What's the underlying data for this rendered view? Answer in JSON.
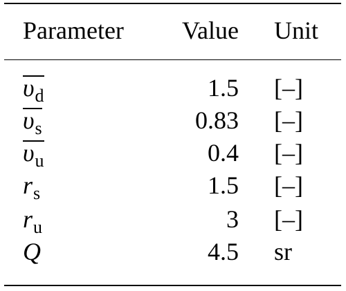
{
  "table": {
    "headers": {
      "parameter": "Parameter",
      "value": "Value",
      "unit": "Unit"
    },
    "rows": [
      {
        "symbol": "υ",
        "subscript": "d",
        "overline": true,
        "value": "1.5",
        "unit": "[–]"
      },
      {
        "symbol": "υ",
        "subscript": "s",
        "overline": true,
        "value": "0.83",
        "unit": "[–]"
      },
      {
        "symbol": "υ",
        "subscript": "u",
        "overline": true,
        "value": "0.4",
        "unit": "[–]"
      },
      {
        "symbol": "r",
        "subscript": "s",
        "overline": false,
        "value": "1.5",
        "unit": "[–]"
      },
      {
        "symbol": "r",
        "subscript": "u",
        "overline": false,
        "value": "3",
        "unit": "[–]"
      },
      {
        "symbol": "Q",
        "subscript": "",
        "overline": false,
        "value": "4.5",
        "unit": "sr"
      }
    ]
  }
}
